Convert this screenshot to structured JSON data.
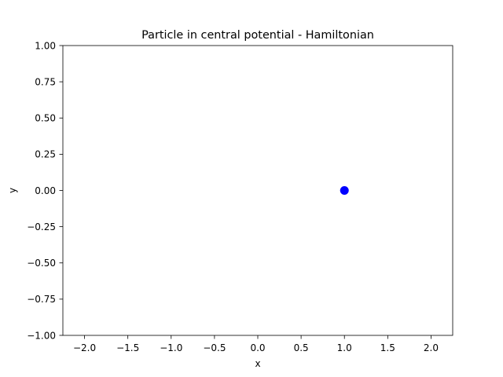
{
  "chart_data": {
    "type": "scatter",
    "title": "Particle in central potential - Hamiltonian",
    "xlabel": "x",
    "ylabel": "y",
    "xlim": [
      -2.25,
      2.25
    ],
    "ylim": [
      -1.0,
      1.0
    ],
    "xticks": [
      -2.0,
      -1.5,
      -1.0,
      -0.5,
      0.0,
      0.5,
      1.0,
      1.5,
      2.0
    ],
    "xtick_labels": [
      "−2.0",
      "−1.5",
      "−1.0",
      "−0.5",
      "0.0",
      "0.5",
      "1.0",
      "1.5",
      "2.0"
    ],
    "yticks": [
      1.0,
      0.75,
      0.5,
      0.25,
      0.0,
      -0.25,
      -0.5,
      -0.75,
      -1.0
    ],
    "ytick_labels": [
      "1.00",
      "0.75",
      "0.50",
      "0.25",
      "0.00",
      "−0.25",
      "−0.50",
      "−0.75",
      "−1.00"
    ],
    "grid": false,
    "points": [
      {
        "x": 1.0,
        "y": 0.0,
        "color": "#0000ff"
      }
    ]
  }
}
